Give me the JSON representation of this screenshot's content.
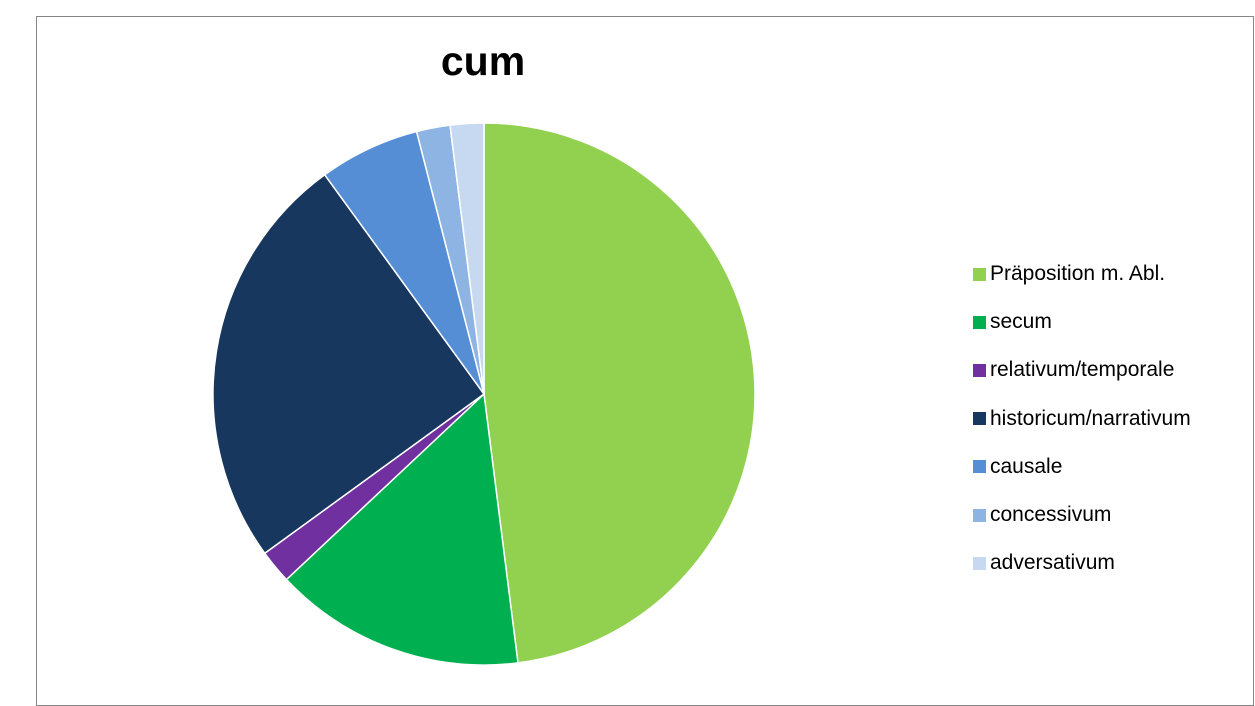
{
  "chart_data": {
    "type": "pie",
    "title": "cum",
    "categories": [
      "Präposition m. Abl.",
      "secum",
      "relativum/temporale",
      "historicum/narrativum",
      "causale",
      "concessivum",
      "adversativum"
    ],
    "values": [
      48,
      15,
      2,
      25,
      6,
      2,
      2
    ],
    "colors": [
      "#92D050",
      "#00B050",
      "#7030A0",
      "#17375E",
      "#558ED5",
      "#8EB4E3",
      "#C6D9F1"
    ],
    "legend_position": "right",
    "start_angle": "12 o'clock",
    "direction": "clockwise"
  }
}
